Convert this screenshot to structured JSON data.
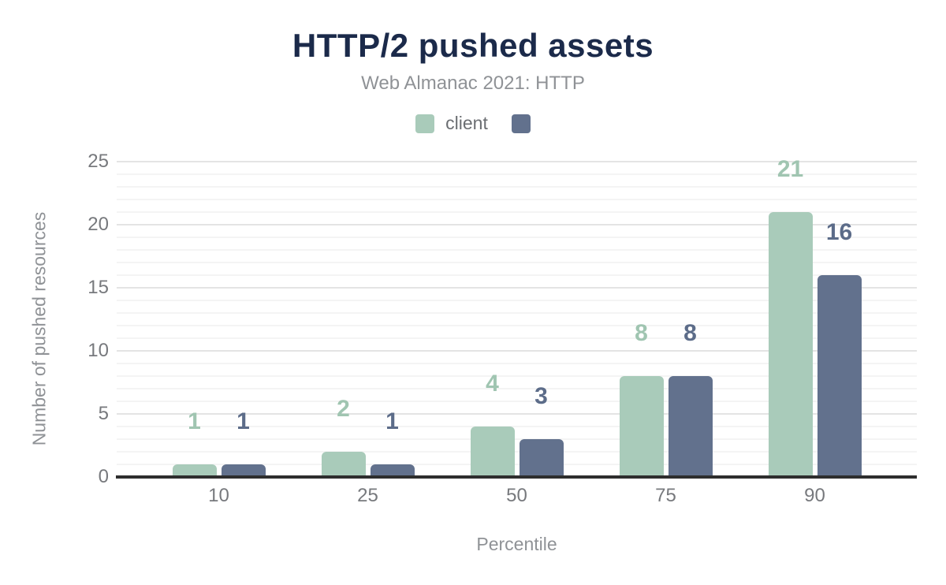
{
  "chart": {
    "title": "HTTP/2 pushed assets",
    "subtitle": "Web Almanac 2021: HTTP"
  },
  "chart_data": {
    "type": "bar",
    "title": "HTTP/2 pushed assets",
    "subtitle": "Web Almanac 2021: HTTP",
    "categories": [
      "10",
      "25",
      "50",
      "75",
      "90"
    ],
    "series": [
      {
        "name": "client",
        "values": [
          1,
          2,
          4,
          8,
          21
        ],
        "color": "#a9cbba",
        "label_color": "#a0c5b1"
      },
      {
        "name": "",
        "values": [
          1,
          1,
          3,
          8,
          16
        ],
        "color": "#62718d",
        "label_color": "#5c6c89"
      }
    ],
    "xlabel": "Percentile",
    "ylabel": "Number of pushed resources",
    "ylim": [
      0,
      25
    ],
    "yticks": [
      0,
      5,
      10,
      15,
      20,
      25
    ],
    "grid": "horizontal major every 5, faint minor every 1",
    "legend_position": "top-center",
    "data_labels": true
  },
  "colors": {
    "title": "#1b2a4a",
    "subtitle": "#8f9296",
    "tick_label": "#77797d",
    "axis_title": "#8f9296",
    "legend_label": "#6b6e72",
    "axis_line": "#2e2e2e",
    "grid_major": "#e4e4e4",
    "grid_minor": "#f4f4f4",
    "series_client": "#a9cbba",
    "series_second": "#62718d",
    "background": "#ffffff"
  }
}
